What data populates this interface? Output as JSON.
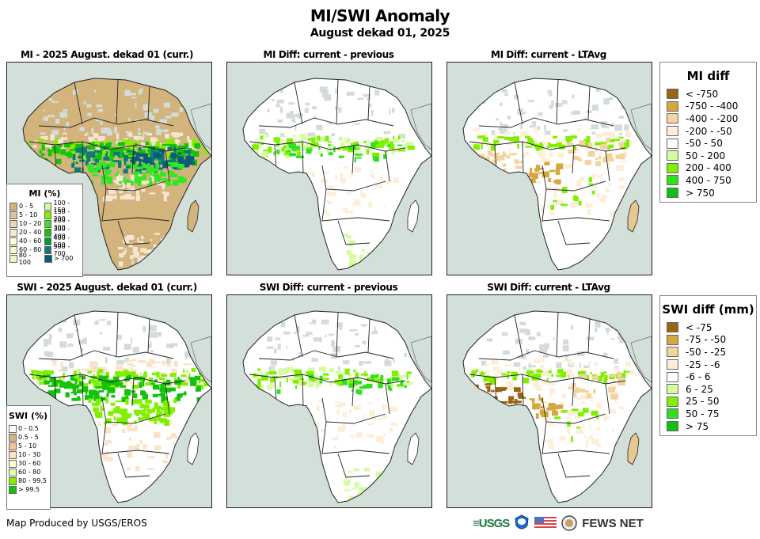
{
  "header": {
    "title": "MI/SWI Anomaly",
    "subtitle": "August dekad 01, 2025"
  },
  "panels": [
    {
      "title": "MI - 2025 August. dekad 01 (curr.)",
      "variant": "mi-curr"
    },
    {
      "title": "MI Diff: current - previous",
      "variant": "diff-prev"
    },
    {
      "title": "MI Diff: current - LTAvg",
      "variant": "diff-lta"
    },
    {
      "title": "SWI - 2025 August. dekad 01 (curr.)",
      "variant": "swi-curr"
    },
    {
      "title": "SWI Diff: current - previous",
      "variant": "diff-prev"
    },
    {
      "title": "SWI Diff: current - LTAvg",
      "variant": "diff-lta-swi"
    }
  ],
  "mi_legend": {
    "title": "MI (%)",
    "items": [
      {
        "label": "0 - 5",
        "color": "#d2b47c"
      },
      {
        "label": "5 - 10",
        "color": "#dfc394"
      },
      {
        "label": "10 - 20",
        "color": "#ecd6b6"
      },
      {
        "label": "20 - 40",
        "color": "#f5e6d2"
      },
      {
        "label": "40 - 60",
        "color": "#fefed8"
      },
      {
        "label": "60 - 80",
        "color": "#f2fcc8"
      },
      {
        "label": "80 - 100",
        "color": "#e6fcc6"
      },
      {
        "label": "100 - 150",
        "color": "#ccfe99"
      },
      {
        "label": "150 - 200",
        "color": "#80f000"
      },
      {
        "label": "200 - 300",
        "color": "#30e820"
      },
      {
        "label": "300 - 400",
        "color": "#14c20a"
      },
      {
        "label": "400 - 500",
        "color": "#0a9a2a"
      },
      {
        "label": "500 - 700",
        "color": "#0a7a7a"
      },
      {
        "label": "> 700",
        "color": "#0a5a7a"
      }
    ]
  },
  "swi_legend": {
    "title": "SWI (%)",
    "items": [
      {
        "label": "0 - 0.5",
        "color": "#ffffff"
      },
      {
        "label": "0.5 - 5",
        "color": "#d2b47c"
      },
      {
        "label": "5 - 10",
        "color": "#ecc99a"
      },
      {
        "label": "10 - 30",
        "color": "#fbe3c8"
      },
      {
        "label": "30 - 60",
        "color": "#fefed8"
      },
      {
        "label": "60 - 80",
        "color": "#e4fcb0"
      },
      {
        "label": "80 - 99.5",
        "color": "#80f000"
      },
      {
        "label": "> 99.5",
        "color": "#14c20a"
      }
    ]
  },
  "mi_diff_legend": {
    "title": "MI diff",
    "items": [
      {
        "label": "< -750",
        "color": "#9a6410"
      },
      {
        "label": "-750 - -400",
        "color": "#d6a640"
      },
      {
        "label": "-400 - -200",
        "color": "#f2d4a0"
      },
      {
        "label": "-200 - -50",
        "color": "#fdeed8"
      },
      {
        "label": "-50 - 50",
        "color": "#ffffff"
      },
      {
        "label": "50 - 200",
        "color": "#d4fca0"
      },
      {
        "label": "200 - 400",
        "color": "#80f000"
      },
      {
        "label": "400 - 750",
        "color": "#30e020"
      },
      {
        "label": "> 750",
        "color": "#10c010"
      }
    ]
  },
  "swi_diff_legend": {
    "title": "SWI diff (mm)",
    "items": [
      {
        "label": "< -75",
        "color": "#9a6410"
      },
      {
        "label": "-75 - -50",
        "color": "#d6a640"
      },
      {
        "label": "-50 - -25",
        "color": "#f2d4a0"
      },
      {
        "label": "-25 - -6",
        "color": "#fdeed8"
      },
      {
        "label": "-6 - 6",
        "color": "#ffffff"
      },
      {
        "label": "6 - 25",
        "color": "#d4fca0"
      },
      {
        "label": "25 - 50",
        "color": "#80f000"
      },
      {
        "label": "50 - 75",
        "color": "#30e020"
      },
      {
        "label": "> 75",
        "color": "#10c010"
      }
    ]
  },
  "footer": {
    "credit": "Map Produced by USGS/EROS",
    "logos": [
      "USGS",
      "NOAA",
      "US flag",
      "State Dept seal"
    ],
    "fews": "FEWS NET"
  },
  "colors": {
    "ocean": "#d3e0da",
    "border": "#222222"
  }
}
